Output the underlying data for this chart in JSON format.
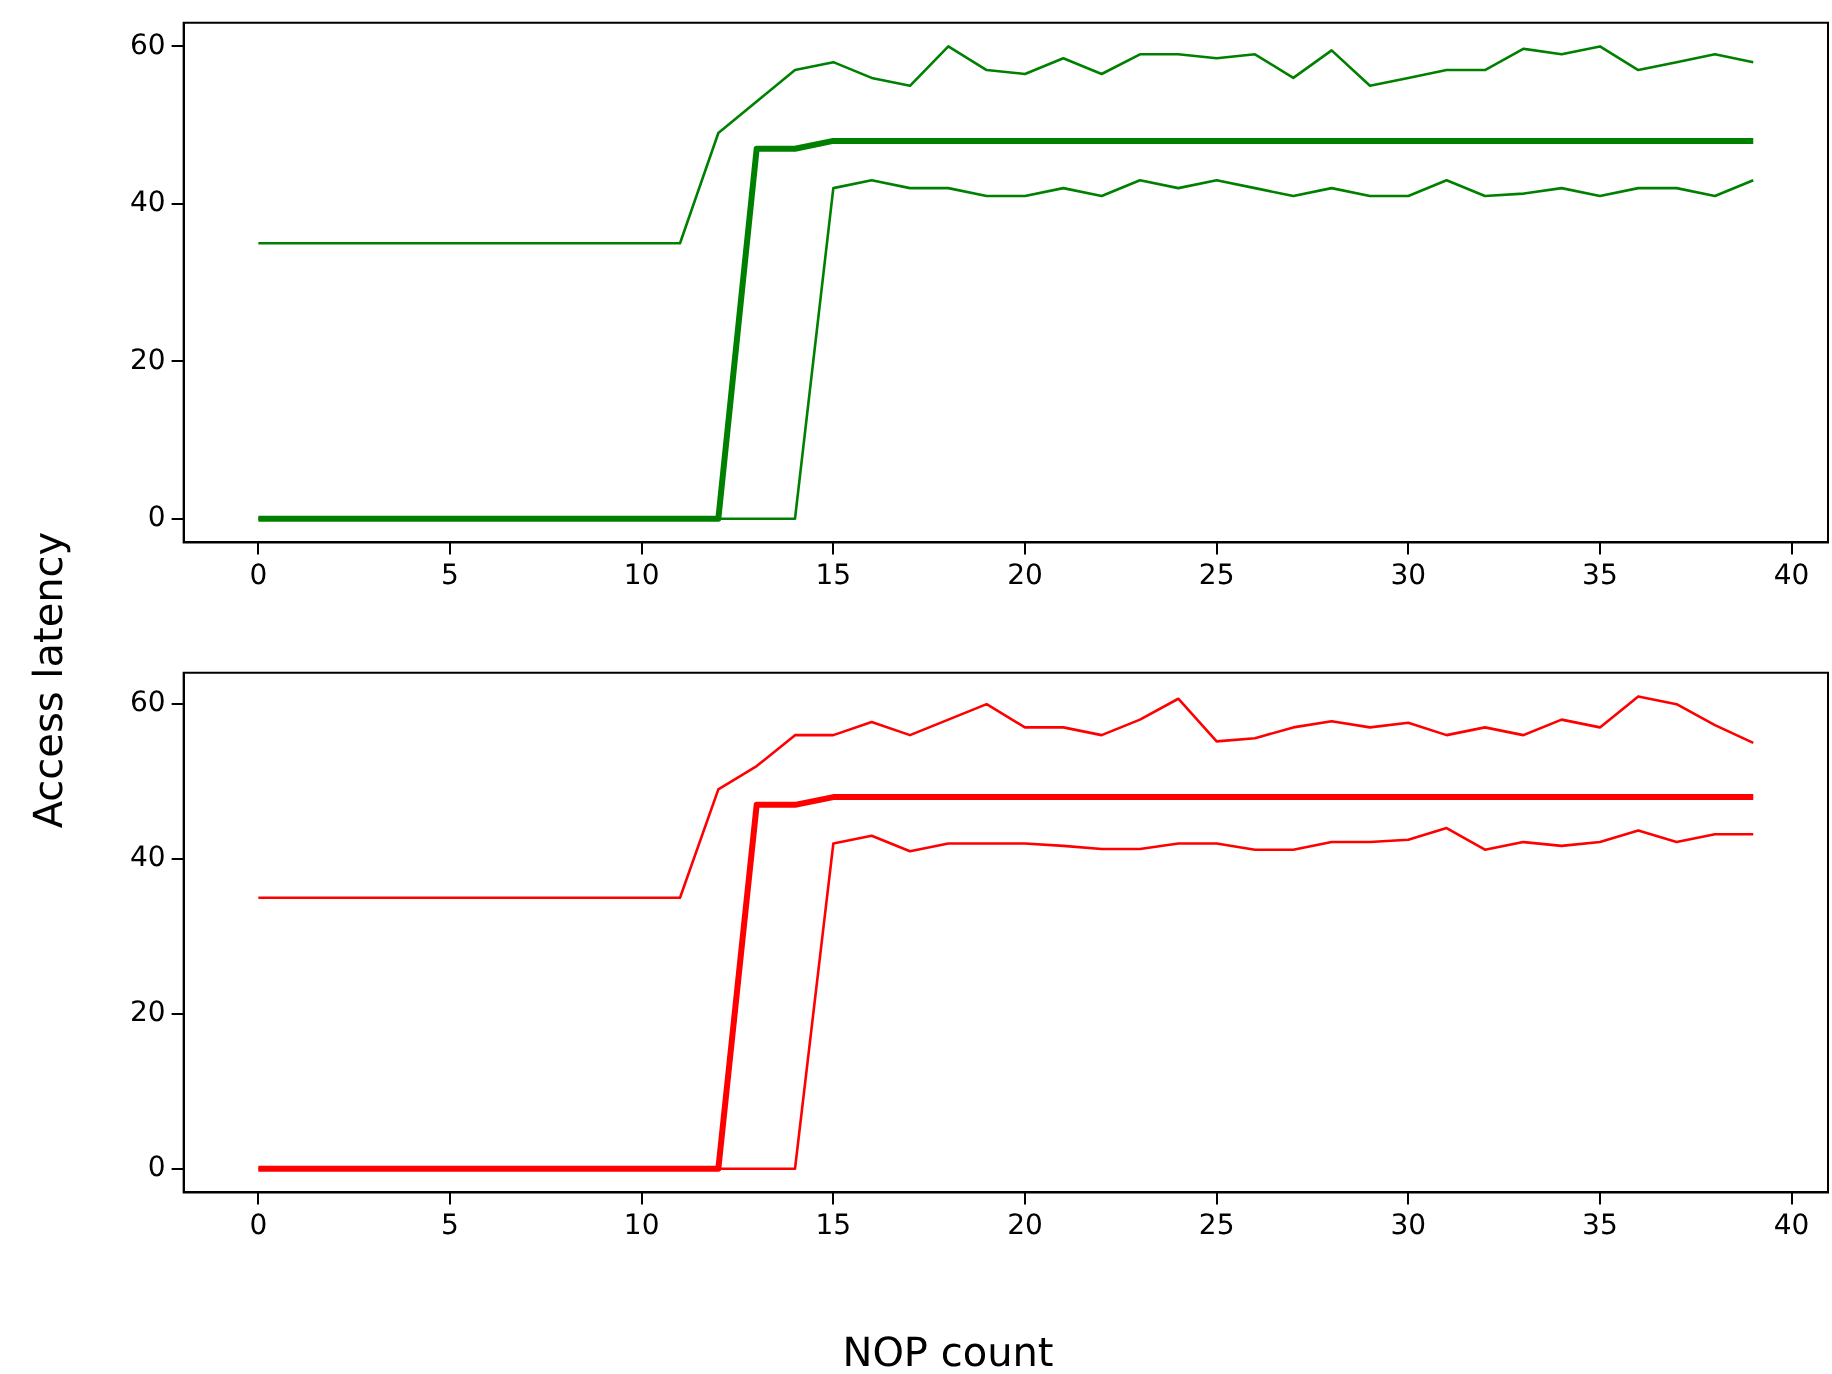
{
  "chart_data": [
    {
      "type": "line",
      "ylabel": "Access latency",
      "x": [
        0,
        1,
        2,
        3,
        4,
        5,
        6,
        7,
        8,
        9,
        10,
        11,
        12,
        13,
        14,
        15,
        16,
        17,
        18,
        19,
        20,
        21,
        22,
        23,
        24,
        25,
        26,
        27,
        28,
        29,
        30,
        31,
        32,
        33,
        34,
        35,
        36,
        37,
        38,
        39
      ],
      "series": [
        {
          "color": "#008000",
          "values": [
            35,
            35,
            35,
            35,
            35,
            35,
            35,
            35,
            35,
            35,
            35,
            35,
            49,
            53,
            57,
            58,
            56,
            55,
            60,
            57,
            56.5,
            58.5,
            56.5,
            59,
            59,
            58.5,
            59,
            56,
            59.5,
            55,
            56,
            57,
            57,
            59.7,
            59,
            60,
            57,
            58,
            59,
            58
          ]
        },
        {
          "color": "#008000",
          "values": [
            0,
            0,
            0,
            0,
            0,
            0,
            0,
            0,
            0,
            0,
            0,
            0,
            0,
            47,
            47,
            48,
            48,
            48,
            48,
            48,
            48,
            48,
            48,
            48,
            48,
            48,
            48,
            48,
            48,
            48,
            48,
            48,
            48,
            48,
            48,
            48,
            48,
            48,
            48,
            48
          ]
        },
        {
          "color": "#008000",
          "values": [
            0,
            0,
            0,
            0,
            0,
            0,
            0,
            0,
            0,
            0,
            0,
            0,
            0,
            0,
            0,
            42,
            43,
            42,
            42,
            41,
            41,
            42,
            41,
            43,
            42,
            43,
            42,
            41,
            42,
            41,
            41,
            43,
            41,
            41.3,
            42,
            41,
            42,
            42,
            41,
            43
          ]
        }
      ],
      "xlim": [
        -1.95,
        40.95
      ],
      "xticks": [
        0,
        5,
        10,
        15,
        20,
        25,
        30,
        35,
        40
      ],
      "ylim": [
        -3,
        63
      ],
      "yticks": [
        0,
        20,
        40,
        60
      ],
      "grid": false,
      "legend": false,
      "line_style": "solid"
    },
    {
      "type": "line",
      "xlabel": "NOP count",
      "x": [
        0,
        1,
        2,
        3,
        4,
        5,
        6,
        7,
        8,
        9,
        10,
        11,
        12,
        13,
        14,
        15,
        16,
        17,
        18,
        19,
        20,
        21,
        22,
        23,
        24,
        25,
        26,
        27,
        28,
        29,
        30,
        31,
        32,
        33,
        34,
        35,
        36,
        37,
        38,
        39
      ],
      "series": [
        {
          "color": "#ff0000",
          "values": [
            35,
            35,
            35,
            35,
            35,
            35,
            35,
            35,
            35,
            35,
            35,
            35,
            49,
            52,
            56,
            56,
            57.7,
            56,
            58,
            60,
            57,
            57,
            56,
            58,
            60.7,
            55.2,
            55.6,
            57,
            57.8,
            57,
            57.6,
            56,
            57,
            56,
            58,
            57,
            61,
            60,
            57.3,
            55
          ]
        },
        {
          "color": "#ff0000",
          "values": [
            0,
            0,
            0,
            0,
            0,
            0,
            0,
            0,
            0,
            0,
            0,
            0,
            0,
            47,
            47,
            48,
            48,
            48,
            48,
            48,
            48,
            48,
            48,
            48,
            48,
            48,
            48,
            48,
            48,
            48,
            48,
            48,
            48,
            48,
            48,
            48,
            48,
            48,
            48,
            48
          ]
        },
        {
          "color": "#ff0000",
          "values": [
            0,
            0,
            0,
            0,
            0,
            0,
            0,
            0,
            0,
            0,
            0,
            0,
            0,
            0,
            0,
            42,
            43,
            41,
            42,
            42,
            42,
            41.7,
            41.3,
            41.3,
            42,
            42,
            41.2,
            41.2,
            42.2,
            42.2,
            42.5,
            44,
            41.2,
            42.2,
            41.7,
            42.2,
            43.7,
            42.2,
            43.2,
            43.2
          ]
        }
      ],
      "xlim": [
        -1.95,
        40.95
      ],
      "xticks": [
        0,
        5,
        10,
        15,
        20,
        25,
        30,
        35,
        40
      ],
      "ylim": [
        -3.05,
        64.05
      ],
      "yticks": [
        0,
        20,
        40,
        60
      ],
      "grid": false,
      "legend": false,
      "line_style": "solid"
    }
  ]
}
